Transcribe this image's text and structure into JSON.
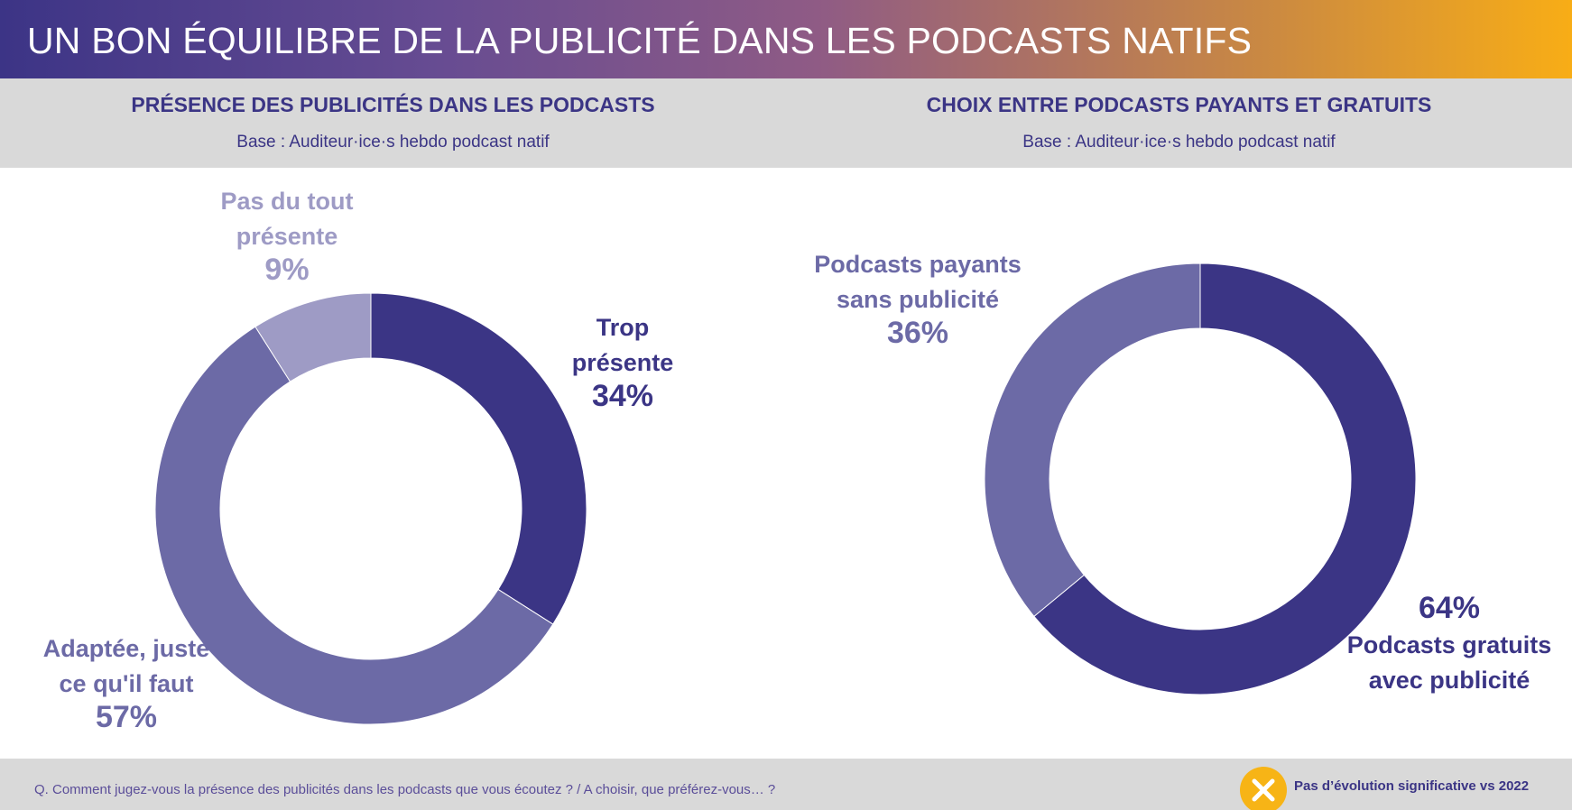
{
  "header": {
    "title": "UN BON ÉQUILIBRE DE LA PUBLICITÉ DANS LES PODCASTS NATIFS"
  },
  "left_panel": {
    "title": "PRÉSENCE DES PUBLICITÉS DANS LES PODCASTS",
    "base": "Base : Auditeur·ice·s hebdo podcast natif"
  },
  "right_panel": {
    "title": "CHOIX ENTRE PODCASTS PAYANTS ET GRATUITS",
    "base": "Base : Auditeur·ice·s hebdo podcast natif"
  },
  "footer": {
    "question": "Q. Comment jugez-vous la présence des publicités dans les podcasts que vous écoutez ? / A choisir, que préférez-vous… ?",
    "badge_text": "Pas d’évolution significative vs 2022",
    "badge_icon": "x-circle-icon",
    "badge_color": "#f7b416"
  },
  "chart_data": [
    {
      "type": "pie",
      "donut": true,
      "title": "PRÉSENCE DES PUBLICITÉS DANS LES PODCASTS",
      "slices": [
        {
          "label_lines": [
            "Trop",
            "présente"
          ],
          "value": 34,
          "value_label": "34%",
          "color": "#3b3585"
        },
        {
          "label_lines": [
            "Adaptée, juste",
            "ce qu'il faut"
          ],
          "value": 57,
          "value_label": "57%",
          "color": "#6c6aa6"
        },
        {
          "label_lines": [
            "Pas du tout",
            "présente"
          ],
          "value": 9,
          "value_label": "9%",
          "color": "#9e9bc5"
        }
      ]
    },
    {
      "type": "pie",
      "donut": true,
      "title": "CHOIX ENTRE PODCASTS PAYANTS ET GRATUITS",
      "slices": [
        {
          "label_lines": [
            "Podcasts gratuits",
            "avec publicité"
          ],
          "value": 64,
          "value_label": "64%",
          "color": "#3b3585"
        },
        {
          "label_lines": [
            "Podcasts payants",
            "sans publicité"
          ],
          "value": 36,
          "value_label": "36%",
          "color": "#6c6aa6"
        }
      ]
    }
  ]
}
